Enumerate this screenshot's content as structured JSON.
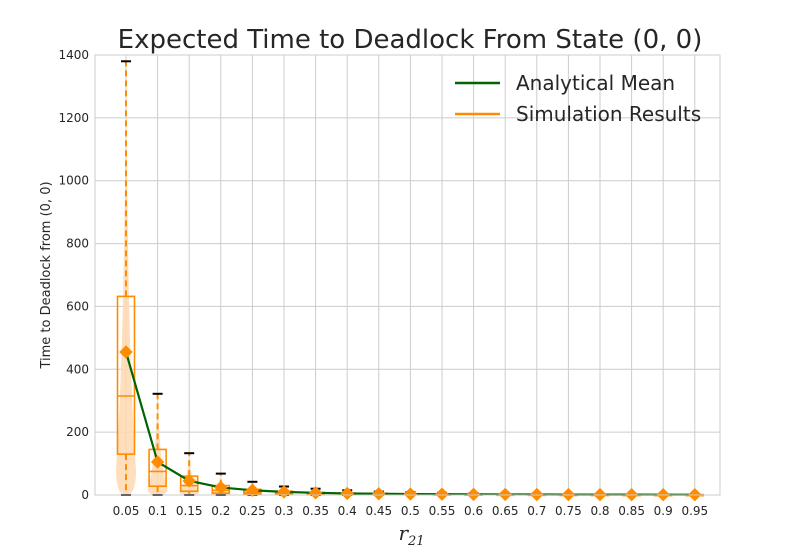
{
  "chart_data": {
    "type": "box",
    "title": "Expected Time to Deadlock From State (0, 0)",
    "xlabel": "r",
    "xlabel_subscript": "21",
    "ylabel": "Time to Deadlock from (0, 0)",
    "ylim": [
      0,
      1400
    ],
    "yticks": [
      0,
      200,
      400,
      600,
      800,
      1000,
      1200,
      1400
    ],
    "categories": [
      "0.05",
      "0.1",
      "0.15",
      "0.2",
      "0.25",
      "0.3",
      "0.35",
      "0.4",
      "0.45",
      "0.5",
      "0.55",
      "0.6",
      "0.65",
      "0.7",
      "0.75",
      "0.8",
      "0.85",
      "0.9",
      "0.95"
    ],
    "grid": true,
    "legend_position": "top-right",
    "colors": {
      "analytical": "#006400",
      "simulation": "#ff8c00",
      "violin": "#ffd8b0",
      "grid": "#cccccc",
      "whisker_cap": "#000000"
    },
    "series": [
      {
        "name": "Analytical Mean",
        "kind": "line",
        "values": [
          455,
          105,
          45,
          24,
          15,
          10,
          7,
          5,
          4,
          3,
          2.5,
          2,
          1.8,
          1.5,
          1.3,
          1.2,
          1.1,
          1.05,
          1.0
        ]
      },
      {
        "name": "Simulation Results",
        "kind": "box",
        "means": [
          455,
          105,
          45,
          24,
          15,
          10,
          7,
          5,
          4,
          3,
          2.5,
          2,
          1.8,
          1.5,
          1.3,
          1.2,
          1.1,
          1.05,
          1.0
        ],
        "q1": [
          130,
          28,
          12,
          6,
          4,
          2,
          1.5,
          1,
          1,
          1,
          1,
          1,
          1,
          1,
          1,
          1,
          1,
          1,
          1
        ],
        "median": [
          315,
          75,
          30,
          15,
          9,
          6,
          4,
          3,
          2,
          2,
          1.5,
          1.5,
          1.2,
          1.1,
          1.1,
          1,
          1,
          1,
          1
        ],
        "q3": [
          632,
          145,
          60,
          30,
          18,
          12,
          8,
          6,
          5,
          4,
          3,
          2.5,
          2.2,
          2,
          1.8,
          1.6,
          1.4,
          1.3,
          1.2
        ],
        "whisker_low": [
          0,
          0,
          0,
          0,
          0,
          0,
          0,
          0,
          0,
          0,
          0,
          0,
          0,
          0,
          0,
          0,
          0,
          0,
          0
        ],
        "whisker_high": [
          1380,
          322,
          133,
          68,
          42,
          27,
          20,
          15,
          11,
          9,
          7,
          6,
          5,
          4,
          4,
          3,
          3,
          3,
          3
        ]
      }
    ]
  }
}
